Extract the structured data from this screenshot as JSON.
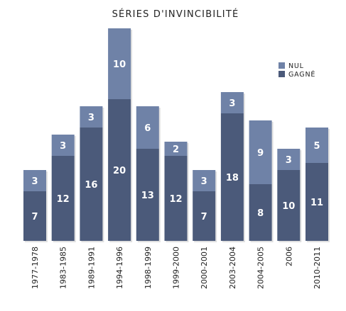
{
  "chart_data": {
    "type": "bar",
    "stacked": true,
    "title": "SÉRIES D'INVINCIBILITÉ",
    "categories": [
      "1977-1978",
      "1983-1985",
      "1989-1991",
      "1994-1996",
      "1998-1999",
      "1999-2000",
      "2000-2001",
      "2003-2004",
      "2004-2005",
      "2006",
      "2010-2011"
    ],
    "series": [
      {
        "name": "GAGNÉ",
        "color": "#4b5a7a",
        "values": [
          7,
          12,
          16,
          20,
          13,
          12,
          7,
          18,
          8,
          10,
          11
        ]
      },
      {
        "name": "NUL",
        "color": "#6f82a7",
        "values": [
          3,
          3,
          3,
          10,
          6,
          2,
          3,
          3,
          9,
          3,
          5
        ]
      }
    ],
    "xlabel": "",
    "ylabel": "",
    "ylim": [
      0,
      30
    ],
    "grid": false,
    "legend_position": "top-right"
  }
}
